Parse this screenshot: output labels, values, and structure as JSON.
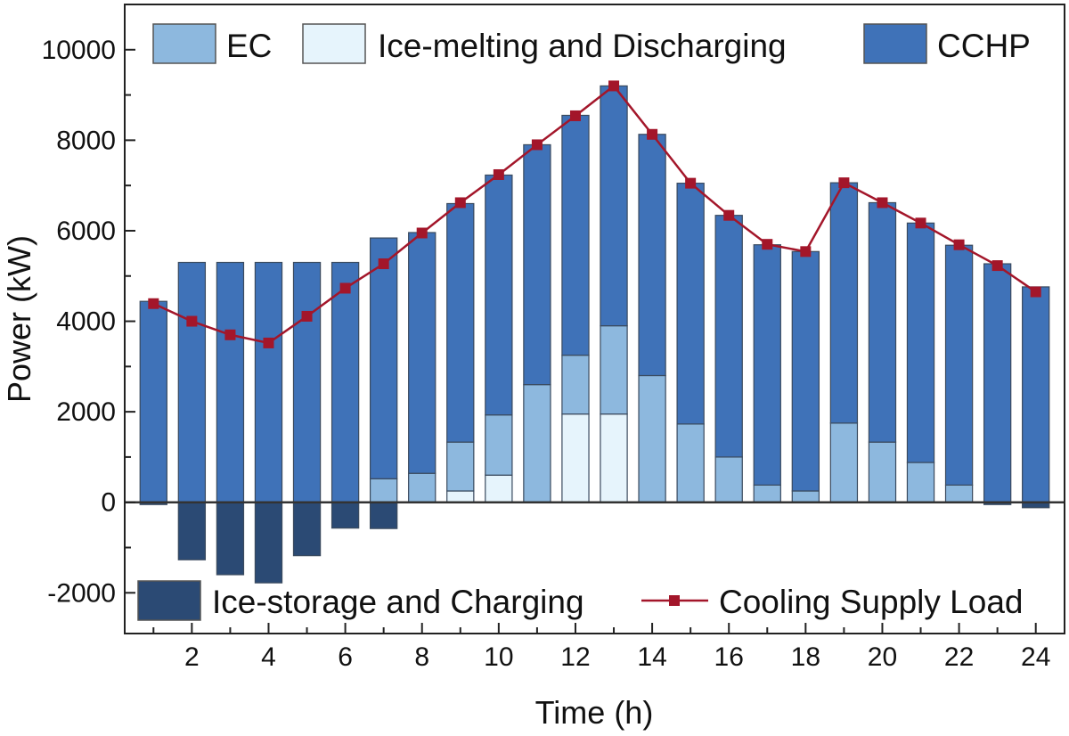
{
  "chart_data": {
    "type": "bar",
    "stacked": true,
    "xlabel": "Time (h)",
    "ylabel": "Power (kW)",
    "x": [
      1,
      2,
      3,
      4,
      5,
      6,
      7,
      8,
      9,
      10,
      11,
      12,
      13,
      14,
      15,
      16,
      17,
      18,
      19,
      20,
      21,
      22,
      23,
      24
    ],
    "xticks": [
      2,
      4,
      6,
      8,
      10,
      12,
      14,
      16,
      18,
      20,
      22,
      24
    ],
    "xlim": [
      0.25,
      24.75
    ],
    "ylim": [
      -2900,
      11000
    ],
    "yticks": [
      -2000,
      0,
      2000,
      4000,
      6000,
      8000,
      10000
    ],
    "series": [
      {
        "name": "Ice-melting and Discharging",
        "color": "#e6f4fc",
        "values": [
          0,
          0,
          0,
          0,
          0,
          0,
          0,
          0,
          250,
          600,
          0,
          1950,
          1950,
          0,
          0,
          0,
          0,
          0,
          0,
          0,
          0,
          0,
          0,
          0
        ]
      },
      {
        "name": "EC",
        "color": "#8db8de",
        "values": [
          0,
          0,
          0,
          0,
          0,
          0,
          520,
          640,
          1080,
          1330,
          2600,
          1300,
          1950,
          2800,
          1730,
          1000,
          380,
          250,
          1750,
          1330,
          880,
          380,
          0,
          0
        ]
      },
      {
        "name": "CCHP",
        "color": "#3f72b8",
        "values": [
          4440,
          5300,
          5300,
          5300,
          5300,
          5300,
          5320,
          5320,
          5270,
          5300,
          5300,
          5300,
          5300,
          5330,
          5320,
          5340,
          5310,
          5290,
          5310,
          5290,
          5290,
          5300,
          5270,
          4760
        ]
      },
      {
        "name": "Ice-storage and Charging",
        "color": "#2b4a74",
        "values": [
          -50,
          -1270,
          -1600,
          -1780,
          -1180,
          -570,
          -580,
          0,
          0,
          0,
          0,
          0,
          0,
          0,
          0,
          0,
          0,
          0,
          0,
          0,
          0,
          0,
          -50,
          -120
        ]
      }
    ],
    "line": {
      "name": "Cooling Supply Load",
      "color": "#a3162a",
      "values": [
        4390,
        4000,
        3700,
        3520,
        4110,
        4730,
        5270,
        5950,
        6620,
        7240,
        7900,
        8540,
        9200,
        8130,
        7050,
        6340,
        5700,
        5540,
        7060,
        6620,
        6170,
        5690,
        5230,
        4650
      ]
    },
    "legend": [
      {
        "name": "EC",
        "kind": "bar",
        "color": "#8db8de"
      },
      {
        "name": "Ice-melting and Discharging",
        "kind": "bar",
        "color": "#e6f4fc"
      },
      {
        "name": "CCHP",
        "kind": "bar",
        "color": "#3f72b8"
      },
      {
        "name": "Ice-storage and Charging",
        "kind": "bar",
        "color": "#2b4a74"
      },
      {
        "name": "Cooling Supply Load",
        "kind": "line",
        "color": "#a3162a"
      }
    ]
  }
}
